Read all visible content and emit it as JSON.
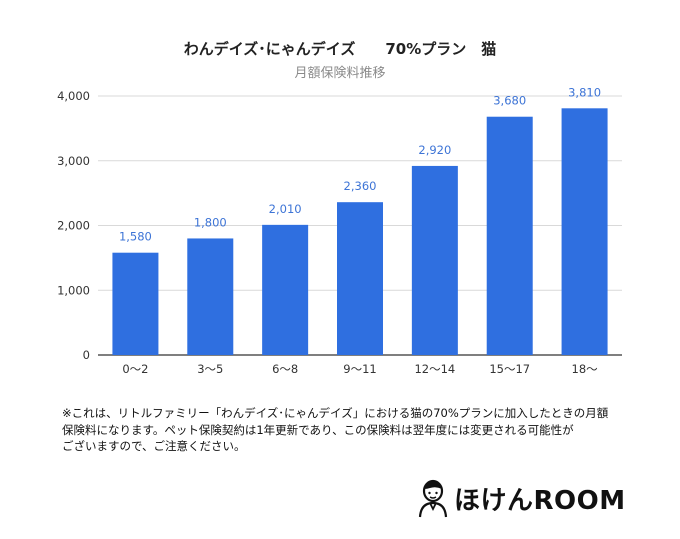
{
  "chart_data": {
    "type": "bar",
    "title": "わんデイズ･にゃんデイズ　　70%プラン　猫",
    "subtitle": "月額保険料推移",
    "categories": [
      "0〜2",
      "3〜5",
      "6〜8",
      "9〜11",
      "12〜14",
      "15〜17",
      "18〜"
    ],
    "values": [
      1580,
      1800,
      2010,
      2360,
      2920,
      3680,
      3810
    ],
    "data_labels": [
      "1,580",
      "1,800",
      "2,010",
      "2,360",
      "2,920",
      "3,680",
      "3,810"
    ],
    "y_ticks": [
      0,
      1000,
      2000,
      3000,
      4000
    ],
    "y_tick_labels": [
      "0",
      "1,000",
      "2,000",
      "3,000",
      "4,000"
    ],
    "ylim": [
      0,
      4000
    ],
    "xlabel": "",
    "ylabel": "",
    "grid": true,
    "bar_color": "#2f6fe0",
    "label_color": "#3d74d6"
  },
  "note": {
    "lines": [
      "※これは、リトルファミリー「わんデイズ･にゃんデイズ」における猫の70%プランに加入したときの月額",
      "保険料になります。ペット保険契約は1年更新であり、この保険料は翌年度には変更される可能性が",
      "ございますので、ご注意ください。"
    ]
  },
  "brand": {
    "name": "ほけんROOM",
    "icon": "person-avatar-icon"
  }
}
